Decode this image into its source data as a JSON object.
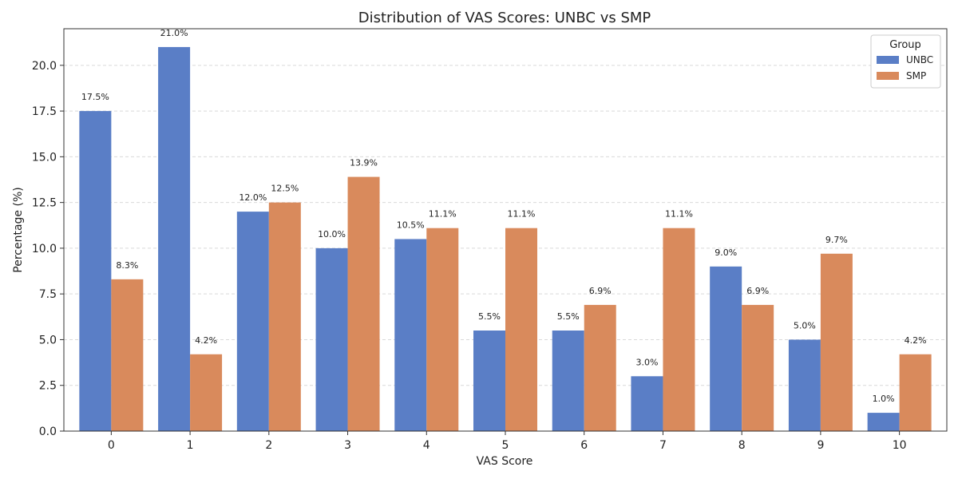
{
  "chart_data": {
    "type": "bar",
    "title": "Distribution of VAS Scores: UNBC vs SMP",
    "xlabel": "VAS Score",
    "ylabel": "Percentage (%)",
    "categories": [
      "0",
      "1",
      "2",
      "3",
      "4",
      "5",
      "6",
      "7",
      "8",
      "9",
      "10"
    ],
    "ylim": [
      0,
      22
    ],
    "yticks": [
      "0.0",
      "2.5",
      "5.0",
      "7.5",
      "10.0",
      "12.5",
      "15.0",
      "17.5",
      "20.0"
    ],
    "ytick_values": [
      0,
      2.5,
      5,
      7.5,
      10,
      12.5,
      15,
      17.5,
      20
    ],
    "grid": true,
    "legend": {
      "title": "Group",
      "position": "top-right"
    },
    "series": [
      {
        "name": "UNBC",
        "color": "#5a7ec6",
        "values": [
          17.5,
          21.0,
          12.0,
          10.0,
          10.5,
          5.5,
          5.5,
          3.0,
          9.0,
          5.0,
          1.0
        ],
        "labels": [
          "17.5%",
          "21.0%",
          "12.0%",
          "10.0%",
          "10.5%",
          "5.5%",
          "5.5%",
          "3.0%",
          "9.0%",
          "5.0%",
          "1.0%"
        ]
      },
      {
        "name": "SMP",
        "color": "#d98a5c",
        "values": [
          8.3,
          4.2,
          12.5,
          13.9,
          11.1,
          11.1,
          6.9,
          11.1,
          6.9,
          9.7,
          4.2
        ],
        "labels": [
          "8.3%",
          "4.2%",
          "12.5%",
          "13.9%",
          "11.1%",
          "11.1%",
          "6.9%",
          "11.1%",
          "6.9%",
          "9.7%",
          "4.2%"
        ]
      }
    ]
  }
}
